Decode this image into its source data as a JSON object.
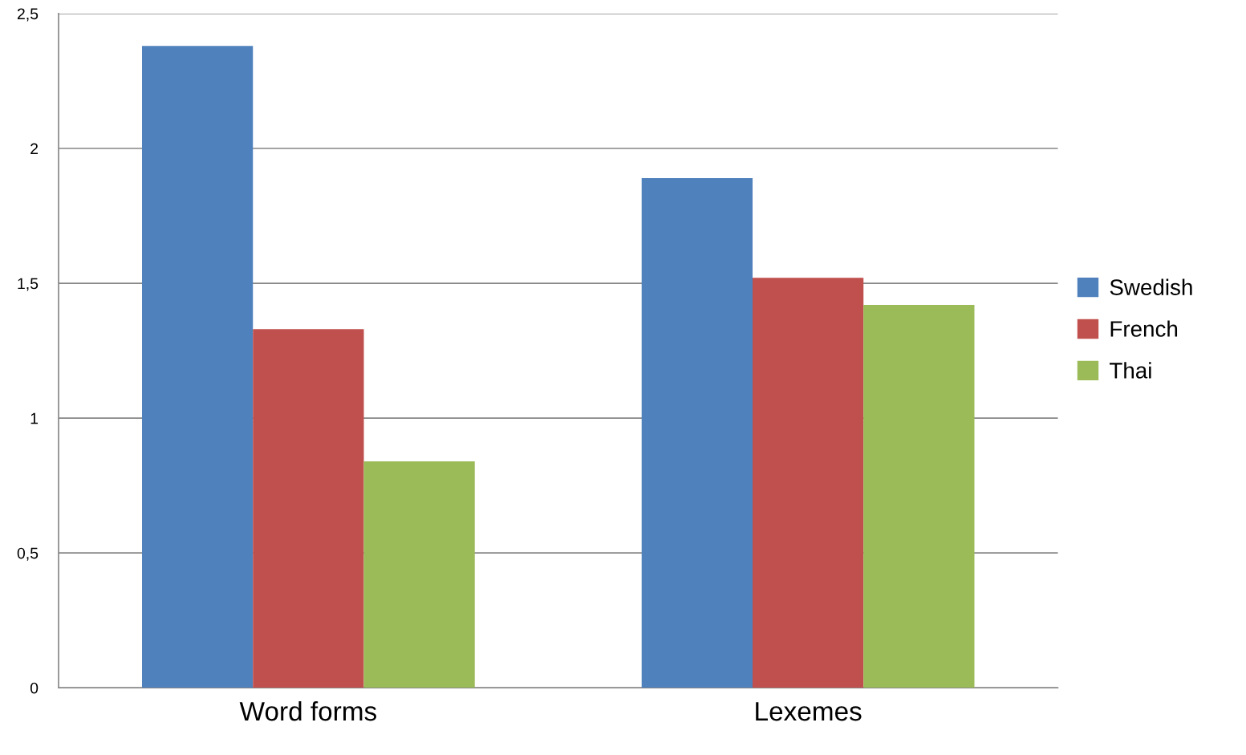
{
  "chart_data": {
    "type": "bar",
    "categories": [
      "Word forms",
      "Lexemes"
    ],
    "series": [
      {
        "name": "Swedish",
        "color": "#4f81bd",
        "values": [
          2.38,
          1.89
        ]
      },
      {
        "name": "French",
        "color": "#c0504d",
        "values": [
          1.33,
          1.52
        ]
      },
      {
        "name": "Thai",
        "color": "#9bbb59",
        "values": [
          0.84,
          1.42
        ]
      }
    ],
    "ylim": [
      0,
      2.5
    ],
    "yticks": [
      0,
      {
        "value": 0.5,
        "label": "0,5"
      },
      1,
      {
        "value": 1.5,
        "label": "1,5"
      },
      2,
      {
        "value": 2.5,
        "label": "2,5"
      }
    ],
    "grid": "y",
    "legend": "right"
  }
}
